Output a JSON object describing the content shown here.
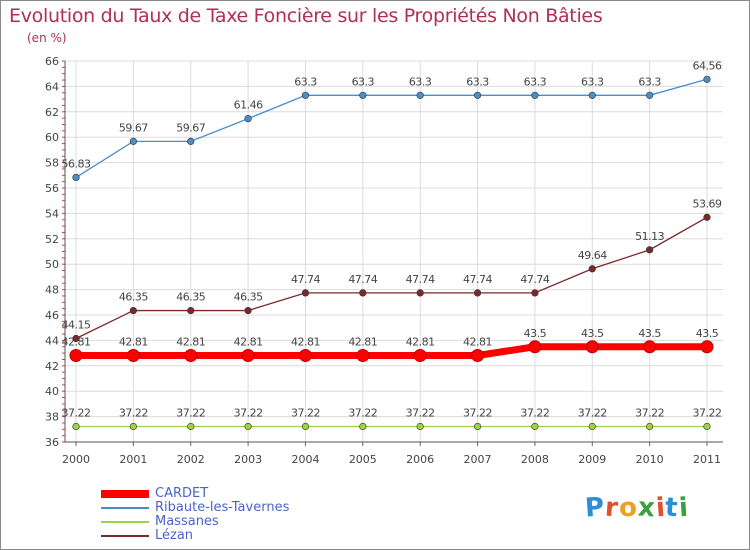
{
  "title": "Evolution du Taux de Taxe Foncière sur les Propriétés Non Bâties",
  "subtitle": "(en %)",
  "logo": {
    "text": "Proxiti",
    "colors": [
      "#2a8fd8",
      "#e0502a",
      "#f0a020",
      "#3aa040",
      "#e0502a",
      "#2a8fd8",
      "#3aa040"
    ]
  },
  "chart_data": {
    "type": "line",
    "x": [
      "2000",
      "2001",
      "2002",
      "2003",
      "2004",
      "2005",
      "2006",
      "2007",
      "2008",
      "2009",
      "2010",
      "2011"
    ],
    "ylim": [
      36,
      66
    ],
    "yticks": [
      36,
      38,
      40,
      42,
      44,
      46,
      48,
      50,
      52,
      54,
      56,
      58,
      60,
      62,
      64,
      66
    ],
    "grid": true,
    "legend_position": "bottom-left",
    "series": [
      {
        "name": "CARDET",
        "color": "#ff0000",
        "bold": true,
        "values": [
          42.81,
          42.81,
          42.81,
          42.81,
          42.81,
          42.81,
          42.81,
          42.81,
          43.5,
          43.5,
          43.5,
          43.5
        ],
        "labels": [
          "42.81",
          "42.81",
          "42.81",
          "42.81",
          "42.81",
          "42.81",
          "42.81",
          "42.81",
          "43.5",
          "43.5",
          "43.5",
          "43.5"
        ]
      },
      {
        "name": "Ribaute-les-Tavernes",
        "color": "#4a8ec8",
        "values": [
          56.83,
          59.67,
          59.67,
          61.46,
          63.3,
          63.3,
          63.3,
          63.3,
          63.3,
          63.3,
          63.3,
          64.56
        ],
        "labels": [
          "56.83",
          "59.67",
          "59.67",
          "61.46",
          "63.3",
          "63.3",
          "63.3",
          "63.3",
          "63.3",
          "63.3",
          "63.3",
          "64.56"
        ]
      },
      {
        "name": "Massanes",
        "color": "#9ad24a",
        "values": [
          37.22,
          37.22,
          37.22,
          37.22,
          37.22,
          37.22,
          37.22,
          37.22,
          37.22,
          37.22,
          37.22,
          37.22
        ],
        "labels": [
          "37.22",
          "37.22",
          "37.22",
          "37.22",
          "37.22",
          "37.22",
          "37.22",
          "37.22",
          "37.22",
          "37.22",
          "37.22",
          "37.22"
        ]
      },
      {
        "name": "Lézan",
        "color": "#7a2a2a",
        "values": [
          44.15,
          46.35,
          46.35,
          46.35,
          47.74,
          47.74,
          47.74,
          47.74,
          47.74,
          49.64,
          51.13,
          53.69
        ],
        "labels": [
          "44.15",
          "46.35",
          "46.35",
          "46.35",
          "47.74",
          "47.74",
          "47.74",
          "47.74",
          "47.74",
          "49.64",
          "51.13",
          "53.69"
        ]
      }
    ]
  }
}
